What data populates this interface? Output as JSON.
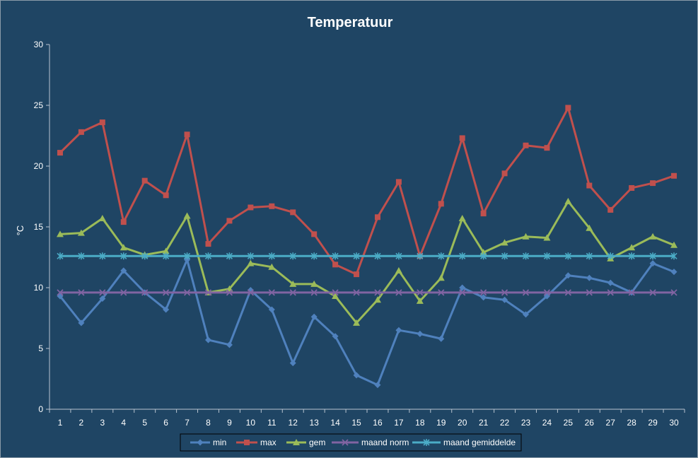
{
  "chart_data": {
    "type": "line",
    "title": "Temperatuur",
    "xlabel": "",
    "ylabel": "°C",
    "ylim": [
      0,
      30
    ],
    "yticks": [
      0,
      5,
      10,
      15,
      20,
      25,
      30
    ],
    "x": [
      1,
      2,
      3,
      4,
      5,
      6,
      7,
      8,
      9,
      10,
      11,
      12,
      13,
      14,
      15,
      16,
      17,
      18,
      19,
      20,
      21,
      22,
      23,
      24,
      25,
      26,
      27,
      28,
      29,
      30
    ],
    "grid": false,
    "legend": "bottom",
    "series": [
      {
        "name": "min",
        "color": "#4f81bd",
        "marker": "diamond",
        "values": [
          9.3,
          7.1,
          9.1,
          11.4,
          9.6,
          8.2,
          12.3,
          5.7,
          5.3,
          9.8,
          8.2,
          3.8,
          7.6,
          6.0,
          2.8,
          2.0,
          6.5,
          6.2,
          5.8,
          10.0,
          9.2,
          9.0,
          7.8,
          9.3,
          11.0,
          10.8,
          10.4,
          9.6,
          12.0,
          11.3
        ]
      },
      {
        "name": "max",
        "color": "#c0504d",
        "marker": "square",
        "values": [
          21.1,
          22.8,
          23.6,
          15.4,
          18.8,
          17.6,
          22.6,
          13.6,
          15.5,
          16.6,
          16.7,
          16.2,
          14.4,
          11.9,
          11.1,
          15.8,
          18.7,
          12.6,
          16.9,
          22.3,
          16.1,
          19.4,
          21.7,
          21.5,
          24.8,
          18.4,
          16.4,
          18.2,
          18.6,
          19.2
        ]
      },
      {
        "name": "gem",
        "color": "#9bbb59",
        "marker": "triangle",
        "values": [
          14.4,
          14.5,
          15.7,
          13.3,
          12.7,
          13.0,
          15.9,
          9.6,
          9.9,
          12.0,
          11.7,
          10.3,
          10.3,
          9.3,
          7.1,
          9.0,
          11.4,
          8.9,
          10.8,
          15.7,
          12.9,
          13.7,
          14.2,
          14.1,
          17.1,
          14.9,
          12.4,
          13.3,
          14.2,
          13.5
        ]
      },
      {
        "name": "maand norm",
        "color": "#8064a2",
        "marker": "x",
        "values": [
          9.6,
          9.6,
          9.6,
          9.6,
          9.6,
          9.6,
          9.6,
          9.6,
          9.6,
          9.6,
          9.6,
          9.6,
          9.6,
          9.6,
          9.6,
          9.6,
          9.6,
          9.6,
          9.6,
          9.6,
          9.6,
          9.6,
          9.6,
          9.6,
          9.6,
          9.6,
          9.6,
          9.6,
          9.6,
          9.6
        ]
      },
      {
        "name": "maand gemiddelde",
        "color": "#4bacc6",
        "marker": "star",
        "values": [
          12.6,
          12.6,
          12.6,
          12.6,
          12.6,
          12.6,
          12.6,
          12.6,
          12.6,
          12.6,
          12.6,
          12.6,
          12.6,
          12.6,
          12.6,
          12.6,
          12.6,
          12.6,
          12.6,
          12.6,
          12.6,
          12.6,
          12.6,
          12.6,
          12.6,
          12.6,
          12.6,
          12.6,
          12.6,
          12.6
        ]
      }
    ]
  }
}
